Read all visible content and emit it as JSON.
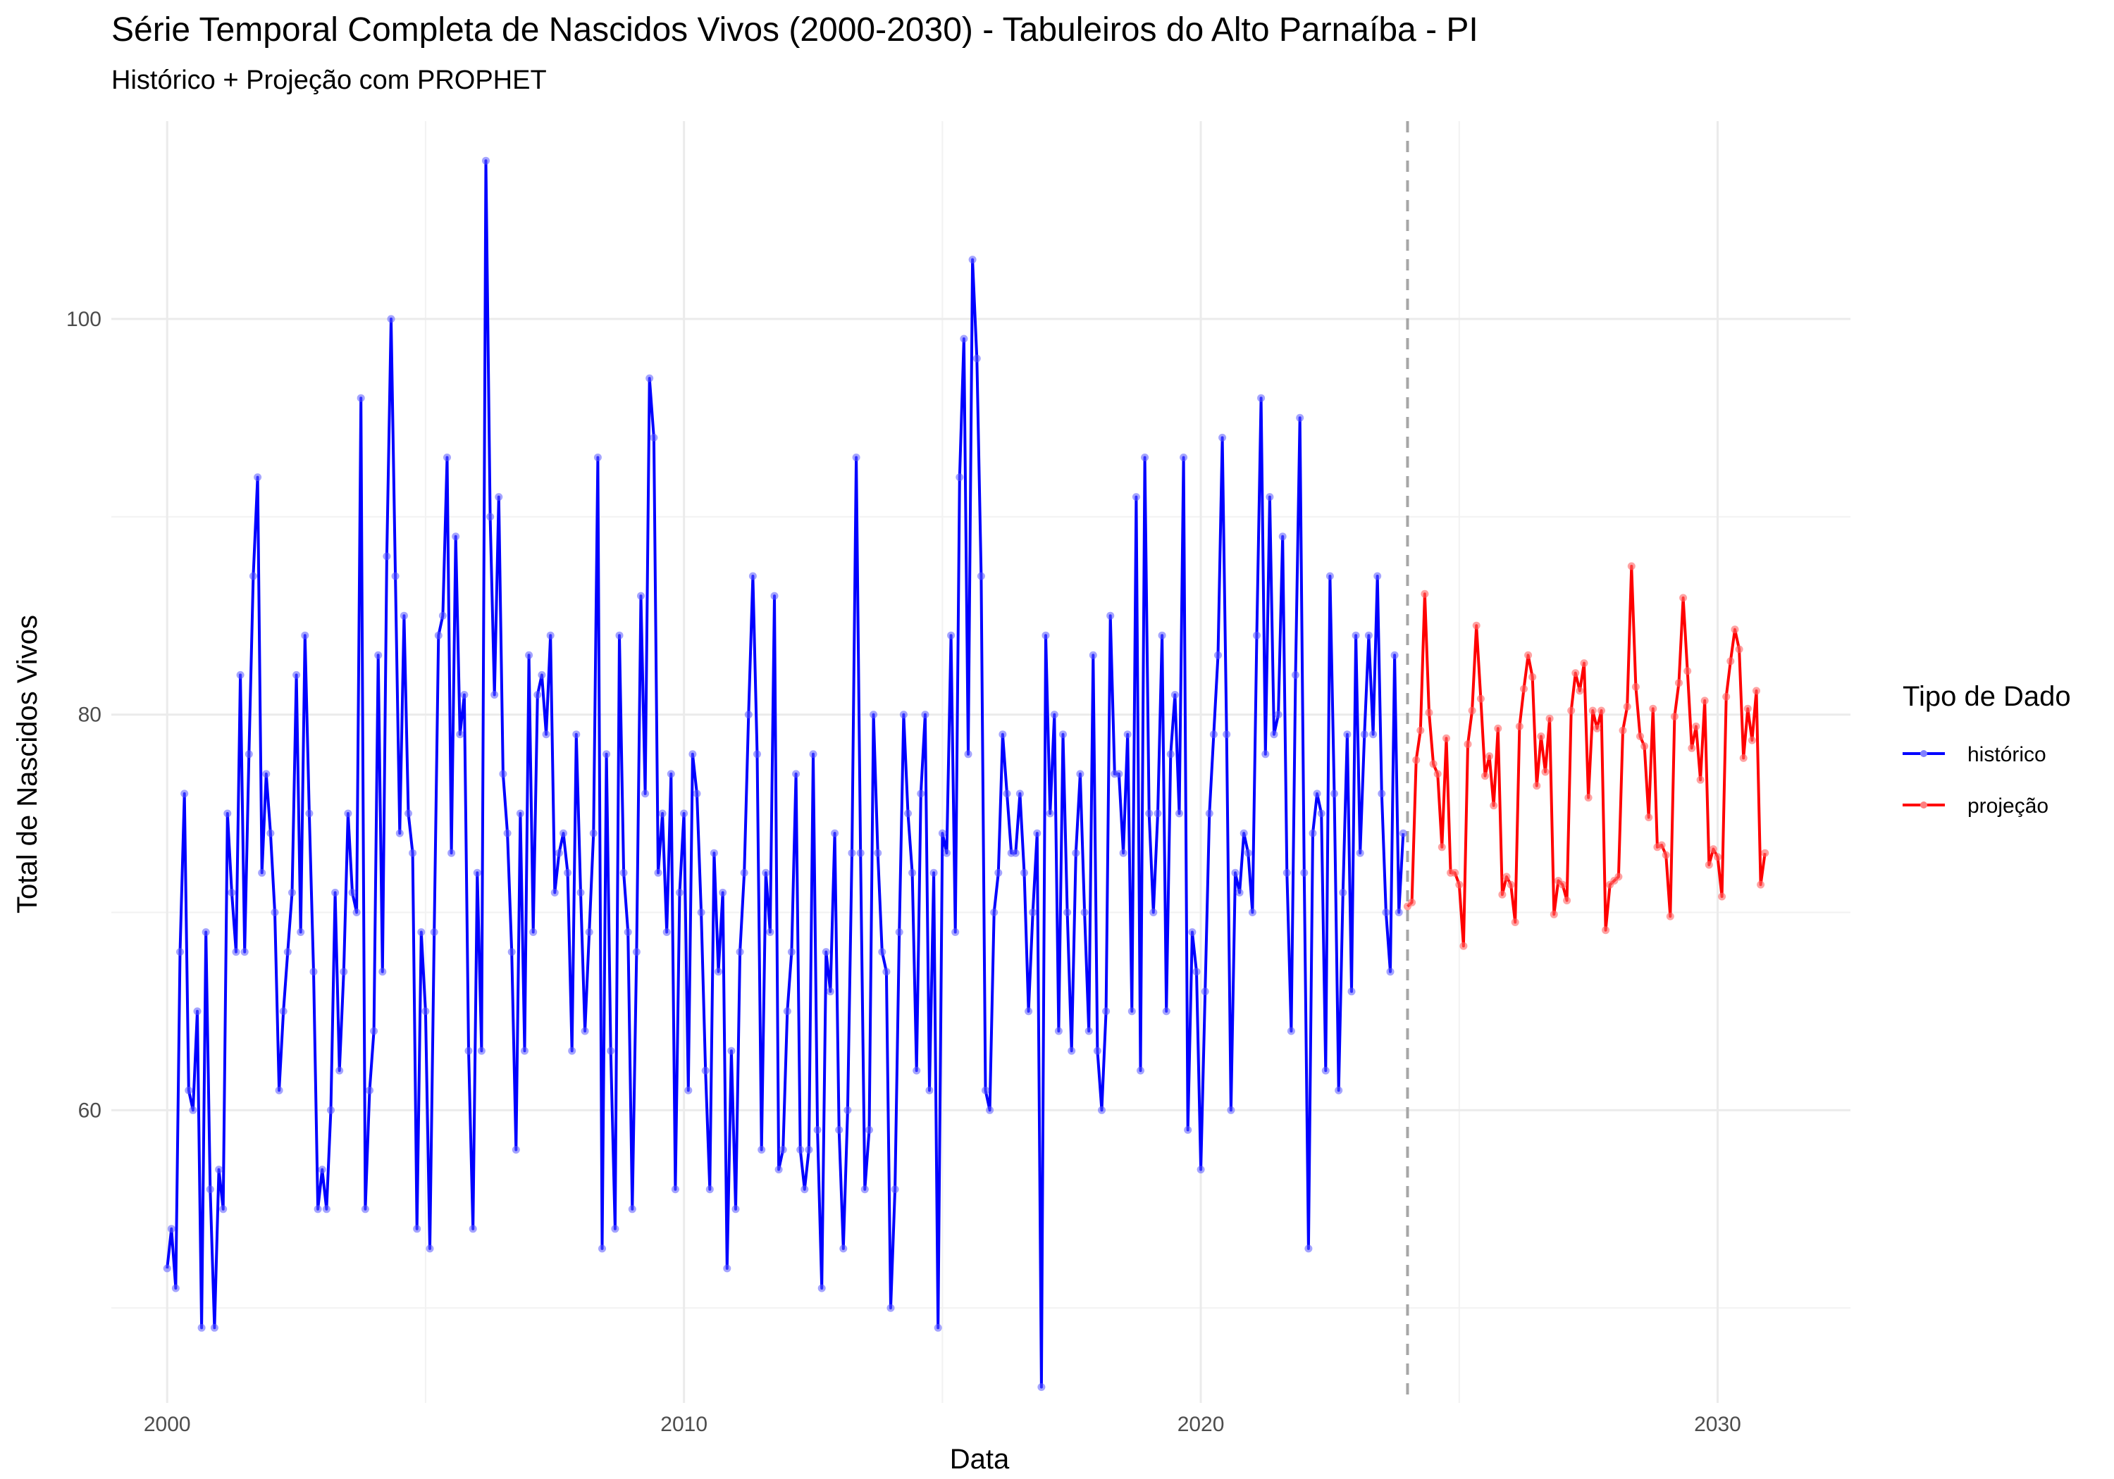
{
  "chart_data": {
    "type": "line",
    "title": "Série Temporal Completa de Nascidos Vivos (2000-2030) -  Tabuleiros do Alto Parnaíba - PI",
    "subtitle": "Histórico + Projeção com PROPHET",
    "xlabel": "Data",
    "ylabel": "Total de Nascidos Vivos",
    "xlim": [
      1998.92,
      2032.57
    ],
    "ylim": [
      45.2,
      110.0
    ],
    "x_ticks": [
      2000,
      2010,
      2020,
      2030
    ],
    "x_tick_labels": [
      "2000",
      "2010",
      "2020",
      "2030"
    ],
    "y_ticks": [
      60,
      80,
      100
    ],
    "y_tick_labels": [
      "60",
      "80",
      "100"
    ],
    "grid": true,
    "forecast_start_line": {
      "x": 2024.0,
      "style": "dashed",
      "color": "#a6a6a6"
    },
    "legend": {
      "title": "Tipo de Dado",
      "position": "right"
    },
    "series": [
      {
        "name": "histórico",
        "color": "#0000ff",
        "start": 2000.0,
        "step_months": 1,
        "values": [
          52,
          54,
          51,
          68,
          76,
          61,
          60,
          65,
          49,
          69,
          56,
          49,
          57,
          55,
          75,
          71,
          68,
          82,
          68,
          78,
          87,
          92,
          72,
          77,
          74,
          70,
          61,
          65,
          68,
          71,
          82,
          69,
          84,
          75,
          67,
          55,
          57,
          55,
          60,
          71,
          62,
          67,
          75,
          71,
          70,
          96,
          55,
          61,
          64,
          83,
          67,
          88,
          100,
          87,
          74,
          85,
          75,
          73,
          54,
          69,
          65,
          53,
          69,
          84,
          85,
          93,
          73,
          89,
          79,
          81,
          63,
          54,
          72,
          63,
          108,
          90,
          81,
          91,
          77,
          74,
          68,
          58,
          75,
          63,
          83,
          69,
          81,
          82,
          79,
          84,
          71,
          73,
          74,
          72,
          63,
          79,
          71,
          64,
          69,
          74,
          93,
          53,
          78,
          63,
          54,
          84,
          72,
          69,
          55,
          68,
          86,
          76,
          97,
          94,
          72,
          75,
          69,
          77,
          56,
          71,
          75,
          61,
          78,
          76,
          70,
          62,
          56,
          73,
          67,
          71,
          52,
          63,
          55,
          68,
          72,
          80,
          87,
          78,
          58,
          72,
          69,
          86,
          57,
          58,
          65,
          68,
          77,
          58,
          56,
          58,
          78,
          59,
          51,
          68,
          66,
          74,
          59,
          53,
          60,
          73,
          93,
          73,
          56,
          59,
          80,
          73,
          68,
          67,
          50,
          56,
          69,
          80,
          75,
          72,
          62,
          76,
          80,
          61,
          72,
          49,
          74,
          73,
          84,
          69,
          92,
          99,
          78,
          103,
          98,
          87,
          61,
          60,
          70,
          72,
          79,
          76,
          73,
          73,
          76,
          72,
          65,
          70,
          74,
          46,
          84,
          75,
          80,
          64,
          79,
          70,
          63,
          73,
          77,
          70,
          64,
          83,
          63,
          60,
          65,
          85,
          77,
          77,
          73,
          79,
          65,
          91,
          62,
          93,
          75,
          70,
          75,
          84,
          65,
          78,
          81,
          75,
          93,
          59,
          69,
          67,
          57,
          66,
          75,
          79,
          83,
          94,
          79,
          60,
          72,
          71,
          74,
          73,
          70,
          84,
          96,
          78,
          91,
          79,
          80,
          89,
          72,
          64,
          82,
          95,
          72,
          53,
          74,
          76,
          75,
          62,
          87,
          76,
          61,
          71,
          79,
          66,
          84,
          73,
          79,
          84,
          79,
          87,
          76,
          70,
          67,
          83,
          70,
          74
        ]
      },
      {
        "name": "projeção",
        "color": "#ff0000",
        "start": 2024.0,
        "step_months": 1,
        "values": [
          70.3,
          70.5,
          77.7,
          79.2,
          86.1,
          80.1,
          77.5,
          77.0,
          73.3,
          78.8,
          72.0,
          72.0,
          71.4,
          68.3,
          78.5,
          80.2,
          84.5,
          80.8,
          76.9,
          77.9,
          75.4,
          79.3,
          70.9,
          71.8,
          71.4,
          69.5,
          79.4,
          81.3,
          83.0,
          81.9,
          76.4,
          78.9,
          77.1,
          79.8,
          69.9,
          71.6,
          71.4,
          70.6,
          80.2,
          82.1,
          81.2,
          82.6,
          75.8,
          80.2,
          79.3,
          80.2,
          69.1,
          71.4,
          71.6,
          71.8,
          79.2,
          80.4,
          87.5,
          81.4,
          78.9,
          78.4,
          74.8,
          80.3,
          73.3,
          73.4,
          72.9,
          69.8,
          79.9,
          81.6,
          85.9,
          82.2,
          78.3,
          79.4,
          76.7,
          80.7,
          72.4,
          73.2,
          72.8,
          70.8,
          80.9,
          82.7,
          84.3,
          83.3,
          77.8,
          80.3,
          78.7,
          81.2,
          71.4,
          73.0
        ]
      }
    ]
  }
}
